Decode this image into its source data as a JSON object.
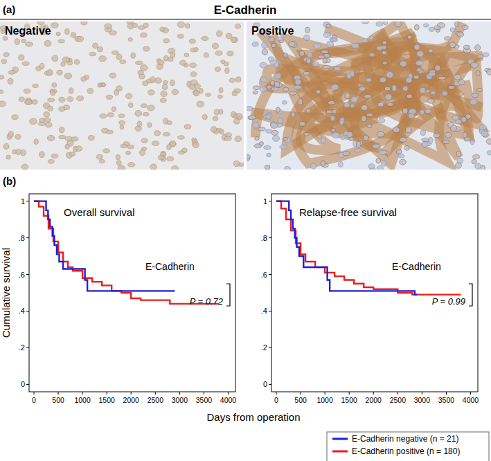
{
  "figure": {
    "panel_a_label": "(a)",
    "title": "E-Cadherin",
    "panel_b_label": "(b)",
    "images": [
      {
        "label": "Negative"
      },
      {
        "label": "Positive"
      }
    ]
  },
  "chart_data": [
    {
      "type": "line",
      "title": "Overall survival",
      "annotation": "E-Cadherin",
      "p_value_label": "P = 0.72",
      "y_label": "Cumulative survival",
      "x_label": "Days from operation",
      "xlim": [
        -100,
        4150
      ],
      "ylim": [
        -0.04,
        1.04
      ],
      "xticks": [
        0,
        500,
        1000,
        1500,
        2000,
        2500,
        3000,
        3500,
        4000
      ],
      "yticks": [
        {
          "value": 0,
          "label": "0"
        },
        {
          "value": 0.2,
          "label": ".2"
        },
        {
          "value": 0.4,
          "label": ".4"
        },
        {
          "value": 0.6,
          "label": ".6"
        },
        {
          "value": 0.8,
          "label": ".8"
        },
        {
          "value": 1,
          "label": "1"
        }
      ],
      "grid": false,
      "legend": "bottom-right",
      "line_style": "step",
      "series": [
        {
          "name": "E-Cadherin negative (n = 21)",
          "color": "#1f1fd6",
          "x": [
            0,
            250,
            290,
            330,
            380,
            420,
            470,
            520,
            600,
            1050,
            1100,
            2900
          ],
          "values": [
            1,
            0.95,
            0.9,
            0.86,
            0.81,
            0.76,
            0.71,
            0.67,
            0.63,
            0.57,
            0.51,
            0.51
          ]
        },
        {
          "name": "E-Cadherin positive (n = 180)",
          "color": "#ee1c1c",
          "x": [
            0,
            100,
            200,
            300,
            400,
            500,
            600,
            700,
            800,
            1000,
            1200,
            1400,
            1600,
            1800,
            2000,
            2200,
            2500,
            2800,
            3000,
            3800
          ],
          "values": [
            1,
            0.97,
            0.92,
            0.85,
            0.78,
            0.72,
            0.67,
            0.64,
            0.62,
            0.58,
            0.56,
            0.54,
            0.51,
            0.5,
            0.47,
            0.46,
            0.46,
            0.44,
            0.44,
            0.44
          ]
        }
      ]
    },
    {
      "type": "line",
      "title": "Relapse-free survival",
      "annotation": "E-Cadherin",
      "p_value_label": "P = 0.99",
      "xlim": [
        -100,
        4150
      ],
      "ylim": [
        -0.04,
        1.04
      ],
      "xticks": [
        0,
        500,
        1000,
        1500,
        2000,
        2500,
        3000,
        3500,
        4000
      ],
      "yticks": [
        {
          "value": 0,
          "label": "0"
        },
        {
          "value": 0.2,
          "label": ".2"
        },
        {
          "value": 0.4,
          "label": ".4"
        },
        {
          "value": 0.6,
          "label": ".6"
        },
        {
          "value": 0.8,
          "label": ".8"
        },
        {
          "value": 1,
          "label": "1"
        }
      ],
      "grid": false,
      "line_style": "step",
      "series": [
        {
          "color": "#1f1fd6",
          "x": [
            0,
            260,
            300,
            340,
            380,
            420,
            470,
            560,
            1050,
            1100,
            2850,
            2900
          ],
          "values": [
            1,
            0.95,
            0.9,
            0.85,
            0.8,
            0.75,
            0.7,
            0.64,
            0.57,
            0.51,
            0.49,
            0.49
          ]
        },
        {
          "color": "#ee1c1c",
          "x": [
            0,
            100,
            200,
            300,
            400,
            500,
            600,
            800,
            1000,
            1200,
            1400,
            1600,
            1800,
            2000,
            2500,
            2800,
            3800
          ],
          "values": [
            1,
            0.96,
            0.9,
            0.84,
            0.77,
            0.71,
            0.67,
            0.64,
            0.61,
            0.59,
            0.57,
            0.55,
            0.53,
            0.52,
            0.5,
            0.49,
            0.49
          ]
        }
      ]
    }
  ]
}
